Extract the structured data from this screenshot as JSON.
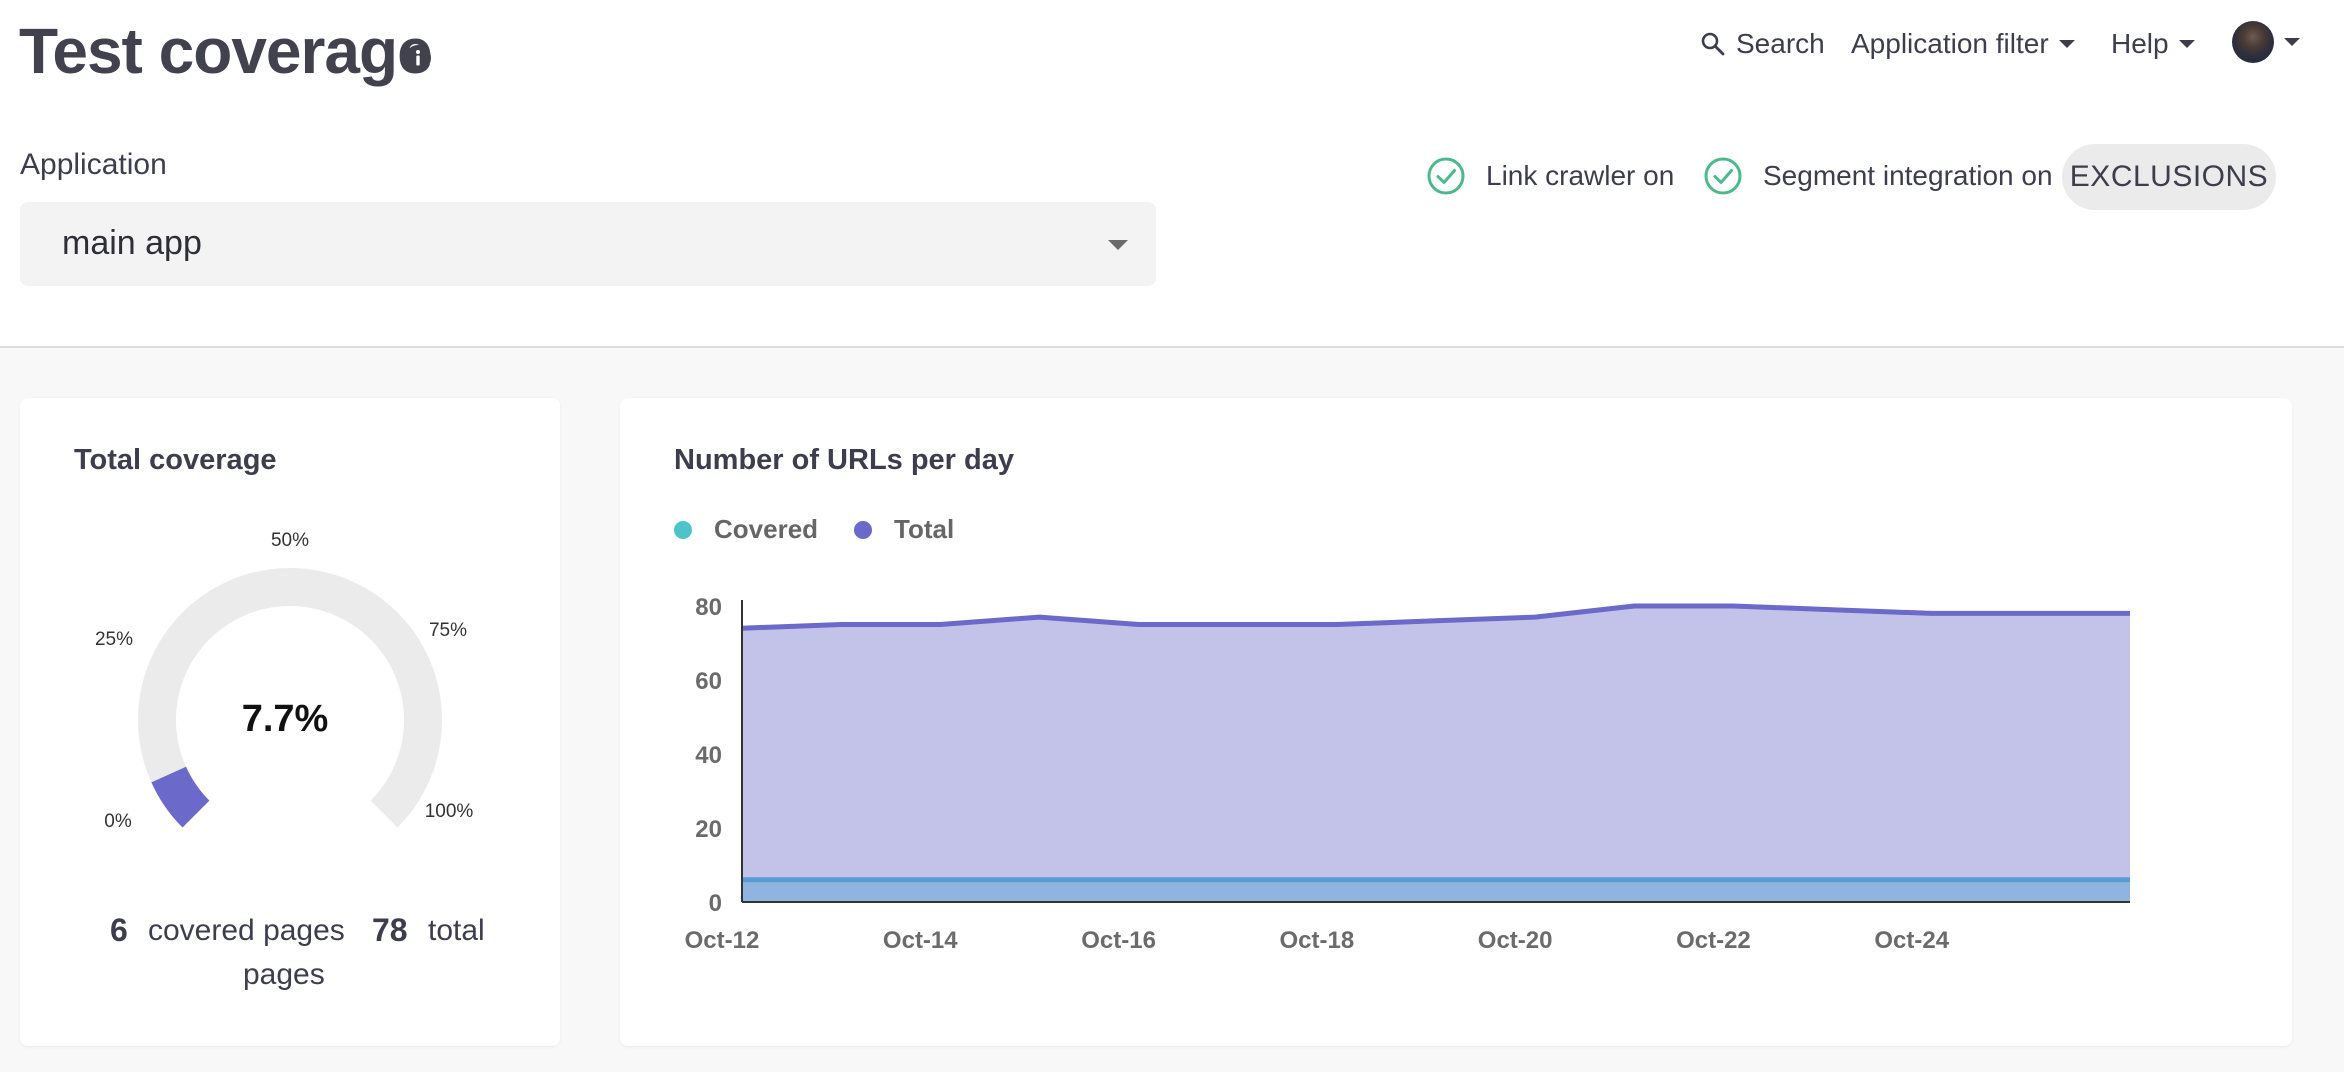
{
  "header": {
    "title": "Test coverage",
    "nav": {
      "search": "Search",
      "application_filter": "Application filter",
      "help": "Help"
    }
  },
  "application": {
    "label": "Application",
    "selected": "main app"
  },
  "status": {
    "link_crawler": "Link crawler on",
    "segment": "Segment integration on",
    "exclusions_button": "EXCLUSIONS"
  },
  "total_coverage": {
    "title": "Total coverage",
    "percent_label": "7.7%",
    "percent": 7.7,
    "gauge_labels": [
      "0%",
      "25%",
      "50%",
      "75%",
      "100%"
    ],
    "covered_count": "6",
    "covered_label": "covered pages",
    "total_count": "78",
    "total_label": "total",
    "pages_label": "pages"
  },
  "urls_chart": {
    "title": "Number of URLs per day",
    "legend": [
      {
        "label": "Covered",
        "color": "#4fc3cc"
      },
      {
        "label": "Total",
        "color": "#6b69c9"
      }
    ]
  },
  "colors": {
    "accent": "#6b69c9",
    "covered": "#4fc3cc",
    "success": "#4cb98c"
  },
  "chart_data": {
    "type": "area",
    "title": "Number of URLs per day",
    "x": [
      "Oct-12",
      "Oct-13",
      "Oct-14",
      "Oct-15",
      "Oct-16",
      "Oct-17",
      "Oct-18",
      "Oct-19",
      "Oct-20",
      "Oct-21",
      "Oct-22",
      "Oct-23",
      "Oct-24",
      "Oct-25",
      "Oct-26"
    ],
    "tick_labels": [
      "Oct-12",
      "Oct-14",
      "Oct-16",
      "Oct-18",
      "Oct-20",
      "Oct-22",
      "Oct-24"
    ],
    "y_ticks": [
      0,
      20,
      40,
      60,
      80
    ],
    "ylim": [
      0,
      80
    ],
    "series": [
      {
        "name": "Total",
        "values": [
          74,
          75,
          75,
          77,
          75,
          75,
          75,
          76,
          77,
          80,
          80,
          79,
          78,
          78,
          78
        ]
      },
      {
        "name": "Covered",
        "values": [
          6,
          6,
          6,
          6,
          6,
          6,
          6,
          6,
          6,
          6,
          6,
          6,
          6,
          6,
          6
        ]
      }
    ],
    "legend": [
      "Covered",
      "Total"
    ]
  }
}
